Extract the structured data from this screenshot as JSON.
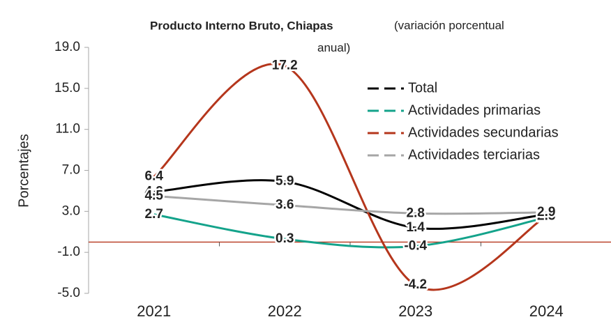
{
  "chart_data": {
    "type": "line",
    "title": "Producto Interno Bruto, Chiapas",
    "subtitle": "(variación porcentual anual)",
    "y_label": "Porcentajes",
    "categories": [
      "2021",
      "2022",
      "2023",
      "2024"
    ],
    "series": [
      {
        "name": "Total",
        "color": "#000000",
        "label_color": "#4472c4",
        "values": [
          4.9,
          5.9,
          1.4,
          2.7
        ]
      },
      {
        "name": "Actividades primarias",
        "color": "#14a38b",
        "label_color": "#ffc000",
        "values": [
          2.7,
          0.3,
          -0.4,
          2.4
        ]
      },
      {
        "name": "Actividades secundarias",
        "color": "#b5361c",
        "label_color": "#ed7d31",
        "values": [
          6.4,
          17.2,
          -4.2,
          2.5
        ]
      },
      {
        "name": "Actividades terciarias",
        "color": "#a6a6a6",
        "label_color": "#a6a6a6",
        "values": [
          4.5,
          3.6,
          2.8,
          2.9
        ]
      }
    ],
    "ylim": [
      -5,
      19
    ],
    "yticks": [
      {
        "value": -5,
        "label": "-5.0"
      },
      {
        "value": -1,
        "label": "-1.0"
      },
      {
        "value": 3,
        "label": "3.0"
      },
      {
        "value": 7,
        "label": "7.0"
      },
      {
        "value": 11,
        "label": "11.0"
      },
      {
        "value": 15,
        "label": "15.0"
      },
      {
        "value": 19,
        "label": "19.0"
      }
    ],
    "legend": "upper right",
    "smooth": true
  }
}
